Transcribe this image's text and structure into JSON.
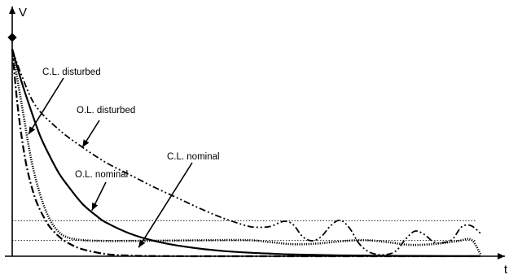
{
  "chart_data": {
    "type": "line",
    "title": "",
    "xlabel": "t",
    "ylabel": "V",
    "xlim": [
      0,
      100
    ],
    "ylim": [
      0,
      100
    ],
    "grid": false,
    "legend": "none",
    "reference_lines": [
      {
        "name": "upper band",
        "y": 16.3,
        "style": "dotted"
      },
      {
        "name": "lower band",
        "y": 7.2,
        "style": "dotted"
      }
    ],
    "series": [
      {
        "name": "C.L. disturbed",
        "style": "dotted",
        "x": [
          0,
          2,
          4,
          6,
          8,
          10,
          12,
          15,
          20,
          30,
          40,
          50,
          55,
          60,
          65,
          70,
          75,
          80,
          85,
          90,
          95,
          98,
          100
        ],
        "y": [
          95,
          70,
          45,
          28,
          17,
          11,
          8.5,
          7.4,
          7.0,
          7.1,
          7.3,
          7.4,
          6.5,
          5.5,
          5.8,
          6.8,
          7.4,
          6.5,
          5.2,
          5.6,
          6.9,
          7.6,
          1.0
        ]
      },
      {
        "name": "O.L. disturbed",
        "style": "dash-dot-dot",
        "x": [
          0,
          2,
          5,
          10,
          15,
          20,
          25,
          30,
          35,
          40,
          45,
          50,
          52,
          55,
          58,
          60,
          62,
          64,
          66,
          68,
          70,
          72,
          74,
          76,
          78,
          80,
          82,
          84,
          86,
          88,
          90,
          92,
          94,
          96,
          98,
          100
        ],
        "y": [
          95,
          83,
          69,
          58,
          50,
          43,
          37.5,
          32,
          27,
          22,
          17.5,
          14,
          13.3,
          13.6,
          16,
          14.5,
          9,
          7.1,
          9,
          14,
          16.5,
          13,
          6,
          2.2,
          0.8,
          0.8,
          2.5,
          7.8,
          11.5,
          10,
          6.5,
          6.2,
          7.8,
          13.5,
          14,
          10.5
        ]
      },
      {
        "name": "C.L. nominal",
        "style": "solid",
        "x": [
          0,
          2,
          4,
          6,
          8,
          10,
          12,
          15,
          18,
          20,
          25,
          30,
          35,
          40,
          45,
          50,
          55,
          60,
          70,
          80,
          90,
          100
        ],
        "y": [
          95,
          80,
          67,
          55,
          46,
          38,
          32,
          24,
          18.5,
          15.5,
          10.5,
          7.2,
          5.0,
          3.5,
          2.4,
          1.7,
          1.2,
          0.8,
          0.4,
          0.2,
          0.1,
          0.05
        ]
      },
      {
        "name": "O.L. nominal",
        "style": "dash-dot",
        "x": [
          0,
          1,
          2,
          3,
          4,
          5,
          6,
          7,
          8,
          10,
          12,
          15,
          20,
          25,
          30,
          40,
          50,
          60,
          80,
          100
        ],
        "y": [
          95,
          72,
          55,
          42,
          33,
          26,
          21,
          17,
          13.5,
          9,
          6,
          3.2,
          1.0,
          0.3,
          0.1,
          0,
          0,
          0,
          0,
          0
        ]
      }
    ],
    "annotations": [
      {
        "text": "C.L. disturbed",
        "points_to_x": 3.5,
        "points_to_y": 56
      },
      {
        "text": "O.L. disturbed",
        "points_to_x": 15,
        "points_to_y": 50
      },
      {
        "text": "C.L. nominal",
        "points_to_x": 27,
        "points_to_y": 4
      },
      {
        "text": "O.L. nominal",
        "points_to_x": 17,
        "points_to_y": 21
      }
    ]
  }
}
